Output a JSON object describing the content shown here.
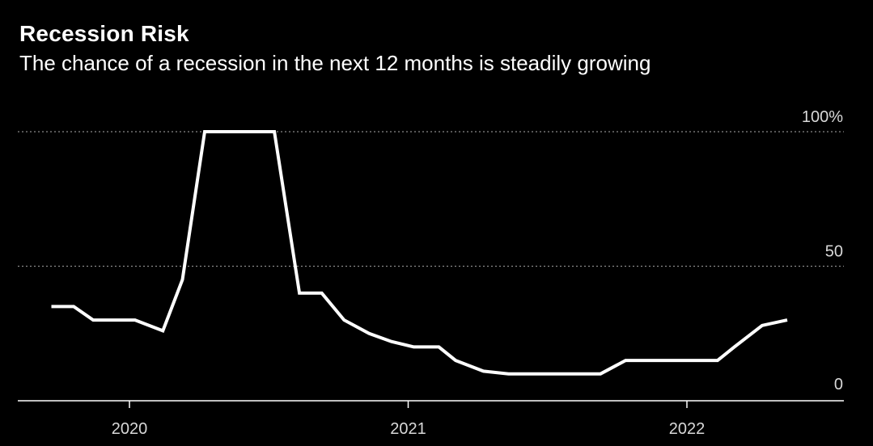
{
  "header": {
    "title": "Recession Risk",
    "subtitle": "The chance of a recession in the next 12 months is steadily growing"
  },
  "colors": {
    "background": "#000000",
    "line": "#ffffff",
    "grid": "#8a8a8a",
    "text": "#ffffff",
    "tick_text": "#d8d8d8"
  },
  "chart_data": {
    "type": "line",
    "title": "Recession Risk",
    "subtitle": "The chance of a recession in the next 12 months is steadily growing",
    "xlabel": "",
    "ylabel": "",
    "ylim": [
      0,
      100
    ],
    "y_ticks": [
      {
        "value": 100,
        "label": "100%"
      },
      {
        "value": 50,
        "label": "50"
      },
      {
        "value": 0,
        "label": "0"
      }
    ],
    "x_ticks": [
      {
        "value": 2020.0,
        "label": "2020"
      },
      {
        "value": 2021.0,
        "label": "2021"
      },
      {
        "value": 2022.0,
        "label": "2022"
      }
    ],
    "grid": "dotted horizontal at 50 and 100",
    "legend": "none",
    "series": [
      {
        "points": [
          {
            "x": 2019.72,
            "y": 35
          },
          {
            "x": 2019.8,
            "y": 35
          },
          {
            "x": 2019.87,
            "y": 30
          },
          {
            "x": 2019.95,
            "y": 30
          },
          {
            "x": 2020.02,
            "y": 30
          },
          {
            "x": 2020.12,
            "y": 26
          },
          {
            "x": 2020.19,
            "y": 45
          },
          {
            "x": 2020.27,
            "y": 100
          },
          {
            "x": 2020.36,
            "y": 100
          },
          {
            "x": 2020.44,
            "y": 100
          },
          {
            "x": 2020.52,
            "y": 100
          },
          {
            "x": 2020.61,
            "y": 40
          },
          {
            "x": 2020.69,
            "y": 40
          },
          {
            "x": 2020.77,
            "y": 30
          },
          {
            "x": 2020.86,
            "y": 25
          },
          {
            "x": 2020.94,
            "y": 22
          },
          {
            "x": 2021.02,
            "y": 20
          },
          {
            "x": 2021.11,
            "y": 20
          },
          {
            "x": 2021.17,
            "y": 15
          },
          {
            "x": 2021.27,
            "y": 11
          },
          {
            "x": 2021.36,
            "y": 10
          },
          {
            "x": 2021.44,
            "y": 10
          },
          {
            "x": 2021.52,
            "y": 10
          },
          {
            "x": 2021.61,
            "y": 10
          },
          {
            "x": 2021.69,
            "y": 10
          },
          {
            "x": 2021.78,
            "y": 15
          },
          {
            "x": 2021.86,
            "y": 15
          },
          {
            "x": 2021.94,
            "y": 15
          },
          {
            "x": 2022.02,
            "y": 15
          },
          {
            "x": 2022.11,
            "y": 15
          },
          {
            "x": 2022.17,
            "y": 20
          },
          {
            "x": 2022.27,
            "y": 28
          },
          {
            "x": 2022.36,
            "y": 30
          }
        ]
      }
    ]
  }
}
